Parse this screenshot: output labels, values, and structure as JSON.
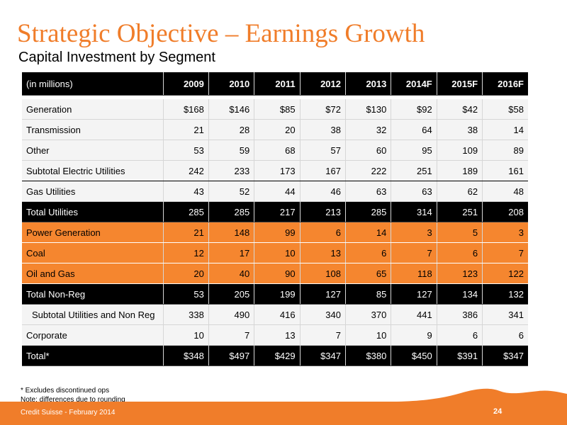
{
  "title": "Strategic Objective – Earnings Growth",
  "subtitle": "Capital Investment by Segment",
  "table": {
    "header_label": "(in millions)",
    "columns": [
      "2009",
      "2010",
      "2011",
      "2012",
      "2013",
      "2014F",
      "2015F",
      "2016F"
    ],
    "rows": [
      {
        "label": "Generation",
        "values": [
          "$168",
          "$146",
          "$85",
          "$72",
          "$130",
          "$92",
          "$42",
          "$58"
        ]
      },
      {
        "label": "Transmission",
        "values": [
          "21",
          "28",
          "20",
          "38",
          "32",
          "64",
          "38",
          "14"
        ]
      },
      {
        "label": "Other",
        "values": [
          "53",
          "59",
          "68",
          "57",
          "60",
          "95",
          "109",
          "89"
        ]
      },
      {
        "label": "Subtotal Electric Utilities",
        "values": [
          "242",
          "233",
          "173",
          "167",
          "222",
          "251",
          "189",
          "161"
        ]
      },
      {
        "label": "Gas Utilities",
        "values": [
          "43",
          "52",
          "44",
          "46",
          "63",
          "63",
          "62",
          "48"
        ]
      },
      {
        "label": "Total Utilities",
        "values": [
          "285",
          "285",
          "217",
          "213",
          "285",
          "314",
          "251",
          "208"
        ]
      },
      {
        "label": "Power Generation",
        "values": [
          "21",
          "148",
          "99",
          "6",
          "14",
          "3",
          "5",
          "3"
        ]
      },
      {
        "label": "Coal",
        "values": [
          "12",
          "17",
          "10",
          "13",
          "6",
          "7",
          "6",
          "7"
        ]
      },
      {
        "label": "Oil and Gas",
        "values": [
          "20",
          "40",
          "90",
          "108",
          "65",
          "118",
          "123",
          "122"
        ]
      },
      {
        "label": "Total Non-Reg",
        "values": [
          "53",
          "205",
          "199",
          "127",
          "85",
          "127",
          "134",
          "132"
        ]
      },
      {
        "label": "Subtotal Utilities and Non Reg",
        "values": [
          "338",
          "490",
          "416",
          "340",
          "370",
          "441",
          "386",
          "341"
        ]
      },
      {
        "label": "Corporate",
        "values": [
          "10",
          "7",
          "13",
          "7",
          "10",
          "9",
          "6",
          "6"
        ]
      },
      {
        "label": "Total*",
        "values": [
          "$348",
          "$497",
          "$429",
          "$347",
          "$380",
          "$450",
          "$391",
          "$347"
        ]
      }
    ]
  },
  "footnotes": {
    "line1": "*  Excludes discontinued ops",
    "line2": "Note: differences due to rounding"
  },
  "footer": {
    "source": "Credit Suisse - February 2014",
    "page_number": "24"
  },
  "colors": {
    "accent_orange": "#f07d2a",
    "header_black": "#000000"
  }
}
